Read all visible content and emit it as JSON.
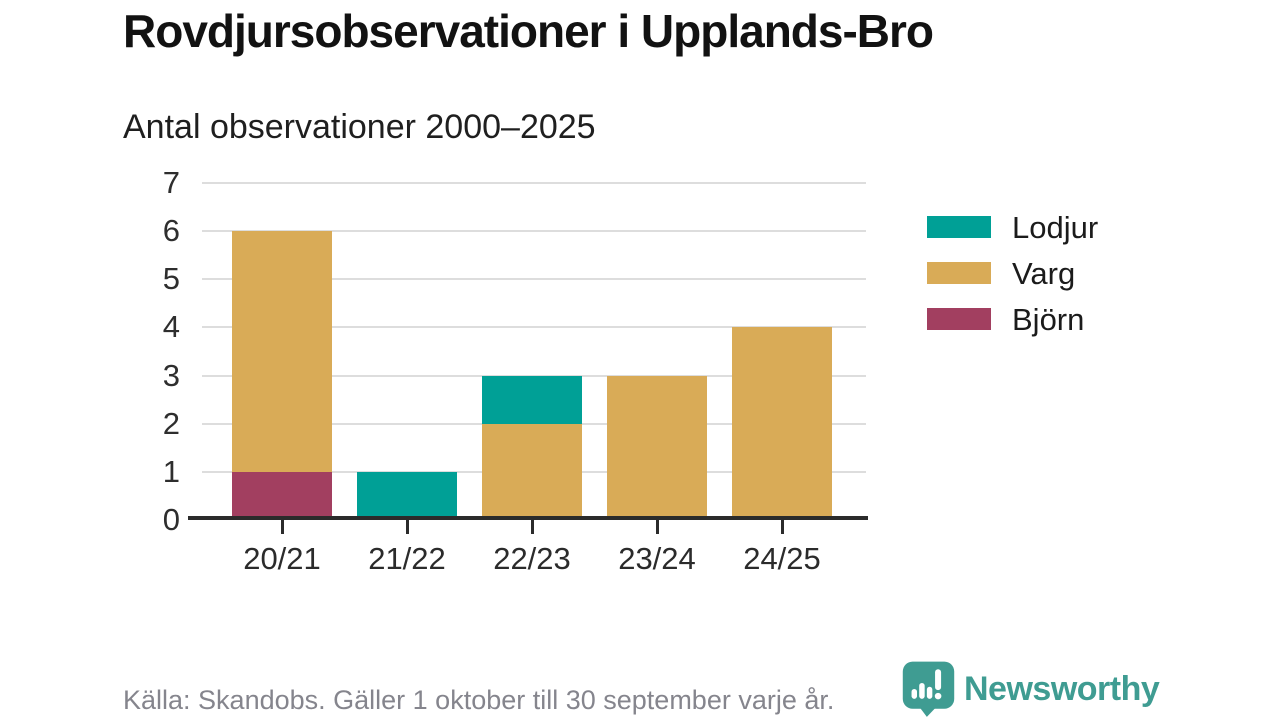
{
  "title": "Rovdjursobservationer i Upplands-Bro",
  "subtitle": "Antal observationer 2000–2025",
  "footer": {
    "source": "Källa: Skandobs. Gäller 1 oktober till 30 september varje år."
  },
  "branding": {
    "name": "Newsworthy",
    "color": "#3f9c92"
  },
  "colors": {
    "grid": "#dddddd",
    "axis": "#2b2b2b",
    "title_text": "#121212",
    "tick_text": "#2e2e2e",
    "source_text": "#85858d"
  },
  "chart_data": {
    "type": "bar",
    "stacked": true,
    "title": "Rovdjursobservationer i Upplands-Bro",
    "subtitle": "Antal observationer 2000–2025",
    "categories": [
      "20/21",
      "21/22",
      "22/23",
      "23/24",
      "24/25"
    ],
    "series": [
      {
        "name": "Lodjur",
        "color": "#00a096",
        "values": [
          0,
          1,
          1,
          0,
          0
        ]
      },
      {
        "name": "Varg",
        "color": "#d9ab57",
        "values": [
          5,
          0,
          2,
          3,
          4
        ]
      },
      {
        "name": "Björn",
        "color": "#a23f60",
        "values": [
          1,
          0,
          0,
          0,
          0
        ]
      }
    ],
    "stack_order_bottom_to_top": [
      "Björn",
      "Varg",
      "Lodjur"
    ],
    "legend": [
      "Lodjur",
      "Varg",
      "Björn"
    ],
    "legend_position": "right",
    "xlabel": "",
    "ylabel": "",
    "ylim": [
      0,
      7
    ],
    "yticks": [
      0,
      1,
      2,
      3,
      4,
      5,
      6,
      7
    ],
    "grid": true
  }
}
